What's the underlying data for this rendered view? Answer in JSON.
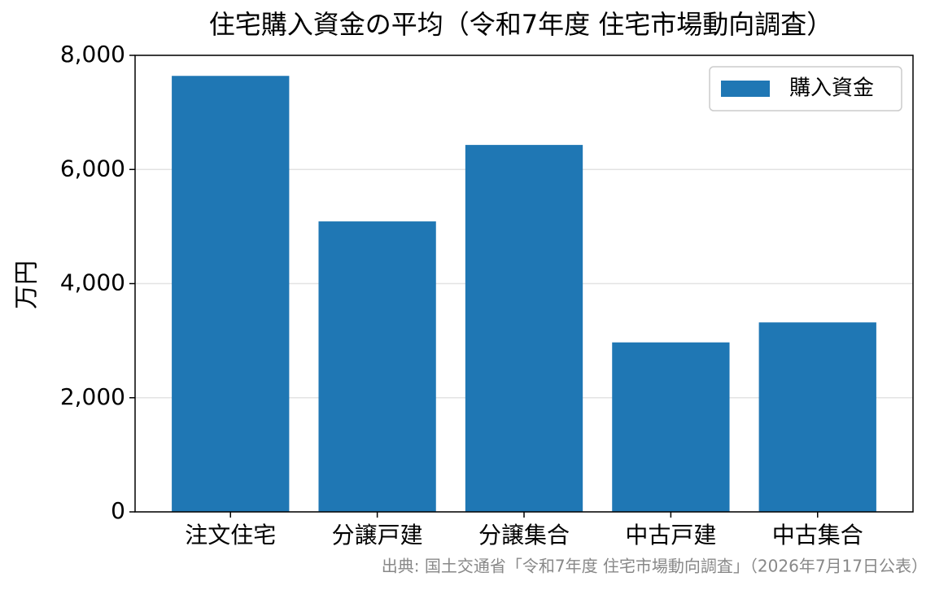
{
  "chart_data": {
    "type": "bar",
    "title": "住宅購入資金の平均（令和7年度 住宅市場動向調査）",
    "ylabel": "万円",
    "categories": [
      "注文住宅",
      "分譲戸建",
      "分譲集合",
      "中古戸建",
      "中古集合"
    ],
    "series": [
      {
        "name": "購入資金",
        "color": "#1f77b4",
        "values": [
          7640,
          5090,
          6430,
          2970,
          3320
        ]
      }
    ],
    "ylim": [
      0,
      8000
    ],
    "yticks": [
      0,
      {
        "value": 2000,
        "label": "2,000"
      },
      {
        "value": 4000,
        "label": "4,000"
      },
      {
        "value": 6000,
        "label": "6,000"
      },
      {
        "value": 8000,
        "label": "8,000"
      }
    ],
    "grid": true,
    "legend": "upper right",
    "source": "出典: 国土交通省「令和7年度 住宅市場動向調査」（2026年7月17日公表）"
  }
}
